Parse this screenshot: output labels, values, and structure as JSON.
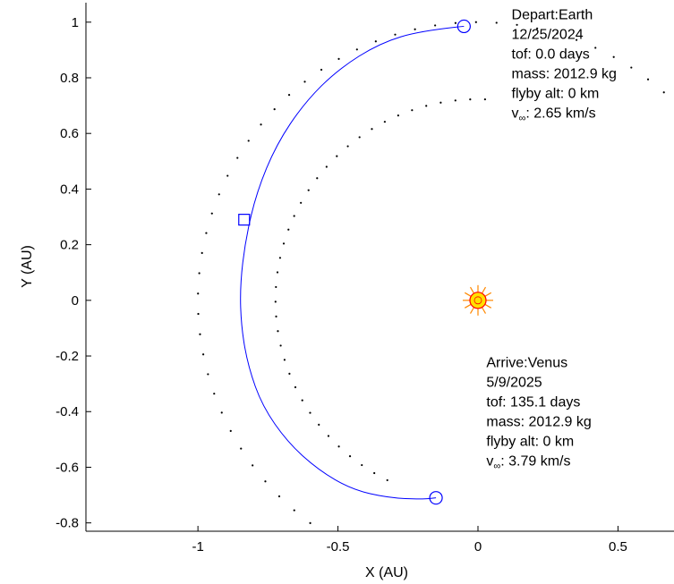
{
  "chart_data": {
    "type": "line",
    "xlabel": "X (AU)",
    "ylabel": "Y (AU)",
    "xlim": [
      -1.4,
      0.7
    ],
    "ylim": [
      -0.83,
      1.07
    ],
    "xticks": [
      -1,
      -0.5,
      0,
      0.5
    ],
    "yticks": [
      1,
      0.8,
      0.6,
      0.4,
      0.2,
      0,
      -0.2,
      -0.4,
      -0.6,
      -0.8
    ],
    "xtick_labels": [
      "-1",
      "-0.5",
      "0",
      "0.5"
    ],
    "ytick_labels": [
      "1",
      "0.8",
      "0.6",
      "0.4",
      "0.2",
      "0",
      "-0.2",
      "-0.4",
      "-0.6",
      "-0.8"
    ],
    "grid": false,
    "colors": {
      "trajectory": "#0000ff",
      "orbit": "#000000",
      "sun": "#ff0000",
      "sun_fill": "#ffe000",
      "rays": "#ff8800"
    },
    "orbits": [
      {
        "radius": 1.0,
        "theta_start_deg": 40,
        "theta_end_deg": 235
      },
      {
        "radius": 0.723,
        "theta_start_deg": 88,
        "theta_end_deg": 245
      }
    ],
    "trajectory": {
      "x": [
        -0.05,
        -0.2,
        -0.35,
        -0.5,
        -0.62,
        -0.72,
        -0.79,
        -0.83,
        -0.85,
        -0.845,
        -0.82,
        -0.77,
        -0.68,
        -0.57,
        -0.45,
        -0.32,
        -0.2,
        -0.15
      ],
      "y": [
        0.985,
        0.97,
        0.925,
        0.83,
        0.71,
        0.56,
        0.39,
        0.22,
        0.05,
        -0.1,
        -0.24,
        -0.38,
        -0.51,
        -0.61,
        -0.68,
        -0.71,
        -0.715,
        -0.71
      ]
    },
    "markers": [
      {
        "name": "depart",
        "shape": "circle",
        "x": -0.05,
        "y": 0.985
      },
      {
        "name": "maneuver",
        "shape": "square",
        "x": -0.835,
        "y": 0.29
      },
      {
        "name": "arrive",
        "shape": "circle",
        "x": -0.15,
        "y": -0.71
      }
    ],
    "sun": {
      "x": 0,
      "y": 0
    },
    "annotations": {
      "depart": {
        "x": 0.12,
        "y": 1.01,
        "lines": [
          "Depart:Earth",
          "12/25/2024",
          "tof: 0.0 days",
          "mass: 2012.9 kg",
          "flyby alt: 0 km"
        ],
        "vinf_value": ": 2.65 km/s"
      },
      "arrive": {
        "x": 0.03,
        "y": -0.24,
        "lines": [
          "Arrive:Venus",
          "5/9/2025",
          "tof: 135.1 days",
          "mass: 2012.9 kg",
          "flyby alt: 0 km"
        ],
        "vinf_value": ": 3.79 km/s"
      }
    }
  }
}
